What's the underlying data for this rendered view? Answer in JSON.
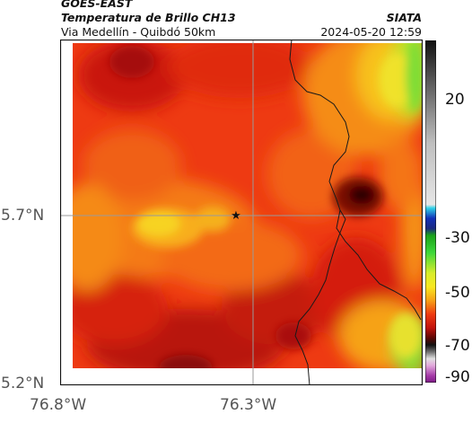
{
  "header": {
    "satellite": "GOES-EAST",
    "product": "Temperatura de Brillo CH13",
    "region": "Via Medellín - Quibdó 50km",
    "agency": "SIATA",
    "datetime": "2024-05-20 12:59"
  },
  "axes": {
    "lat_ticks": [
      "5.7°N",
      "5.2°N"
    ],
    "lon_ticks": [
      "76.8°W",
      "76.3°W"
    ]
  },
  "colorbar": {
    "ticks": [
      "20",
      "-30",
      "-50",
      "-70",
      "-90"
    ]
  },
  "marker": {
    "icon": "star-icon"
  },
  "colors": {
    "map_bg": "#f03a10",
    "grid": "#9a9a9a",
    "border": "#1a1a1a"
  }
}
